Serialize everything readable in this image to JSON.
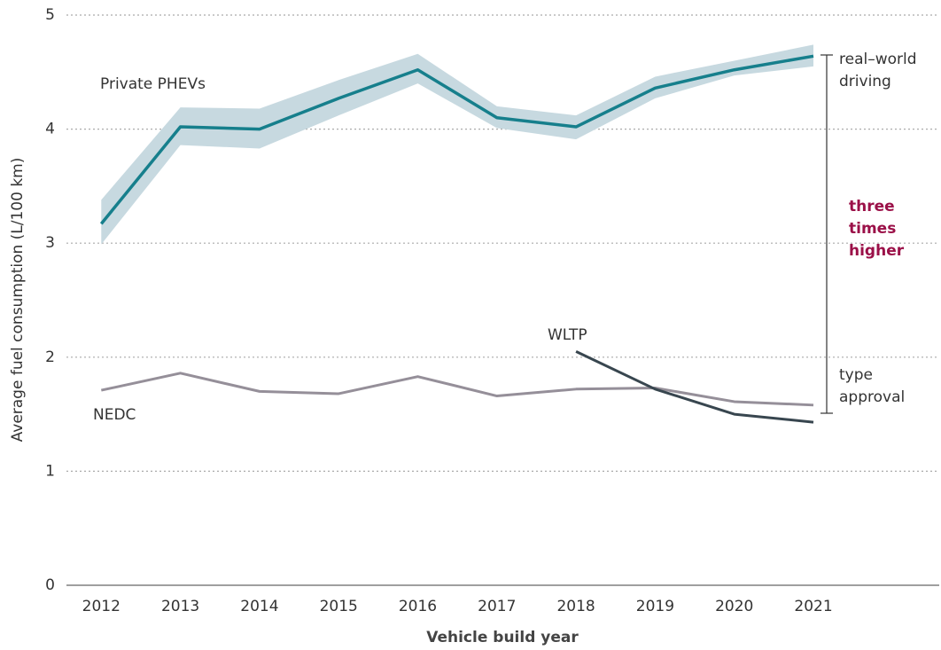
{
  "chart_data": {
    "type": "line",
    "xlabel": "Vehicle build year",
    "ylabel": "Average fuel consumption (L/100 km)",
    "x": [
      2012,
      2013,
      2014,
      2015,
      2016,
      2017,
      2018,
      2019,
      2020,
      2021
    ],
    "xlim": [
      2011.56,
      2022.59
    ],
    "xticks": [
      2012,
      2013,
      2014,
      2015,
      2016,
      2017,
      2018,
      2019,
      2020,
      2021
    ],
    "ylim": [
      0,
      5
    ],
    "yticks": [
      0,
      1,
      2,
      3,
      4,
      5
    ],
    "grid": true,
    "series": [
      {
        "name": "Private PHEVs",
        "color": "#167f8c",
        "band_color": "#c7d9e0",
        "values": [
          3.17,
          4.02,
          4.0,
          4.27,
          4.52,
          4.1,
          4.02,
          4.36,
          4.52,
          4.64
        ],
        "upper": [
          3.38,
          4.19,
          4.18,
          4.43,
          4.66,
          4.2,
          4.12,
          4.46,
          4.6,
          4.74
        ],
        "lower": [
          2.99,
          3.86,
          3.83,
          4.12,
          4.4,
          4.01,
          3.91,
          4.27,
          4.47,
          4.55
        ]
      },
      {
        "name": "NEDC",
        "color": "#958f99",
        "values": [
          1.71,
          1.86,
          1.7,
          1.68,
          1.83,
          1.66,
          1.72,
          1.73,
          1.61,
          1.58
        ]
      },
      {
        "name": "WLTP",
        "color": "#38464f",
        "values": [
          null,
          null,
          null,
          null,
          null,
          null,
          2.05,
          1.72,
          1.5,
          1.43
        ]
      }
    ],
    "annotations": [
      {
        "lines": [
          "real–world",
          "driving"
        ],
        "color": "#333333"
      },
      {
        "lines": [
          "three",
          "times",
          "higher"
        ],
        "color": "#9b1048"
      },
      {
        "lines": [
          "type",
          "approval"
        ],
        "color": "#333333"
      }
    ]
  }
}
